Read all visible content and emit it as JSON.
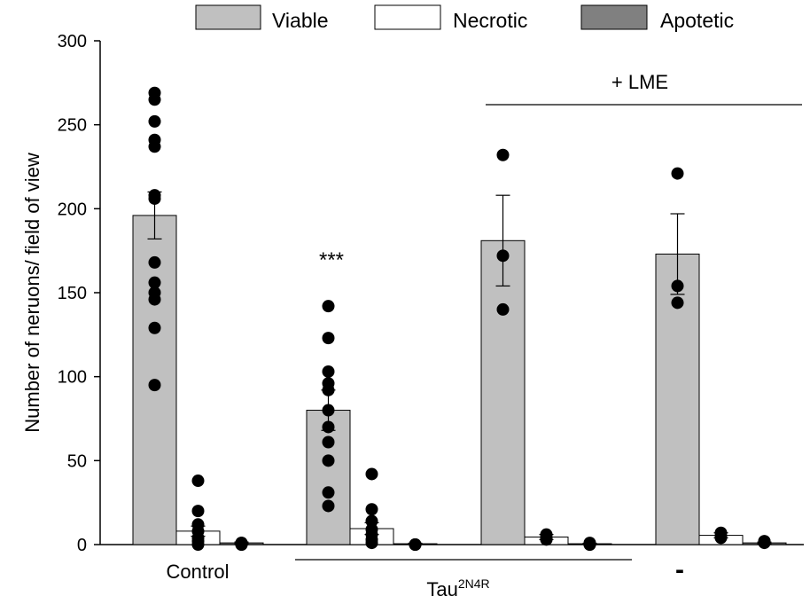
{
  "chart_data": {
    "type": "bar",
    "ylabel": "Number of neruons/ field of view",
    "ylim": [
      0,
      300
    ],
    "yticks": [
      0,
      50,
      100,
      150,
      200,
      250,
      300
    ],
    "legend": {
      "placement": "top",
      "entries": [
        {
          "name": "Viable",
          "color": "#c0c0c0"
        },
        {
          "name": "Necrotic",
          "color": "#ffffff"
        },
        {
          "name": "Apotetic",
          "color": "#808080"
        }
      ]
    },
    "groups": [
      {
        "id": "control",
        "bars": [
          {
            "series": "Viable",
            "value": 196,
            "sem": 14,
            "points": [
              95,
              129,
              146,
              150,
              156,
              168,
              206,
              208,
              237,
              241,
              252,
              265,
              269
            ]
          },
          {
            "series": "Necrotic",
            "value": 8,
            "sem": 3,
            "points": [
              0,
              2,
              4,
              8,
              12,
              20,
              38
            ]
          },
          {
            "series": "Apotetic",
            "value": 1,
            "sem": 0.5,
            "points": [
              0,
              0,
              1,
              1
            ]
          }
        ]
      },
      {
        "id": "tau",
        "bars": [
          {
            "series": "Viable",
            "value": 80,
            "sem": 12,
            "points": [
              23,
              31,
              50,
              61,
              70,
              80,
              92,
              96,
              103,
              123,
              142
            ]
          },
          {
            "series": "Necrotic",
            "value": 9.5,
            "sem": 3.5,
            "points": [
              1,
              3,
              6,
              9,
              14,
              21,
              42
            ]
          },
          {
            "series": "Apotetic",
            "value": 0.5,
            "sem": 0.3,
            "points": [
              0,
              0,
              0
            ]
          }
        ]
      },
      {
        "id": "tau-lme",
        "bars": [
          {
            "series": "Viable",
            "value": 181,
            "sem": 27,
            "points": [
              140,
              172,
              232
            ]
          },
          {
            "series": "Necrotic",
            "value": 4.5,
            "sem": 1.5,
            "points": [
              3,
              4,
              6
            ]
          },
          {
            "series": "Apotetic",
            "value": 0.5,
            "sem": 0.3,
            "points": [
              0,
              0,
              1
            ]
          }
        ]
      },
      {
        "id": "lme",
        "bars": [
          {
            "series": "Viable",
            "value": 173,
            "sem": 24,
            "points": [
              144,
              154,
              221
            ]
          },
          {
            "series": "Necrotic",
            "value": 5.5,
            "sem": 1.5,
            "points": [
              4,
              5,
              7
            ]
          },
          {
            "series": "Apotetic",
            "value": 1,
            "sem": 0.5,
            "points": [
              1,
              2,
              2
            ]
          }
        ]
      }
    ],
    "annotations": {
      "significance": "***",
      "lme_label": "+ LME",
      "x_label_control": "Control",
      "x_label_tau_base": "Tau",
      "x_label_tau_sup": "2N4R",
      "x_label_minus": "-"
    }
  }
}
